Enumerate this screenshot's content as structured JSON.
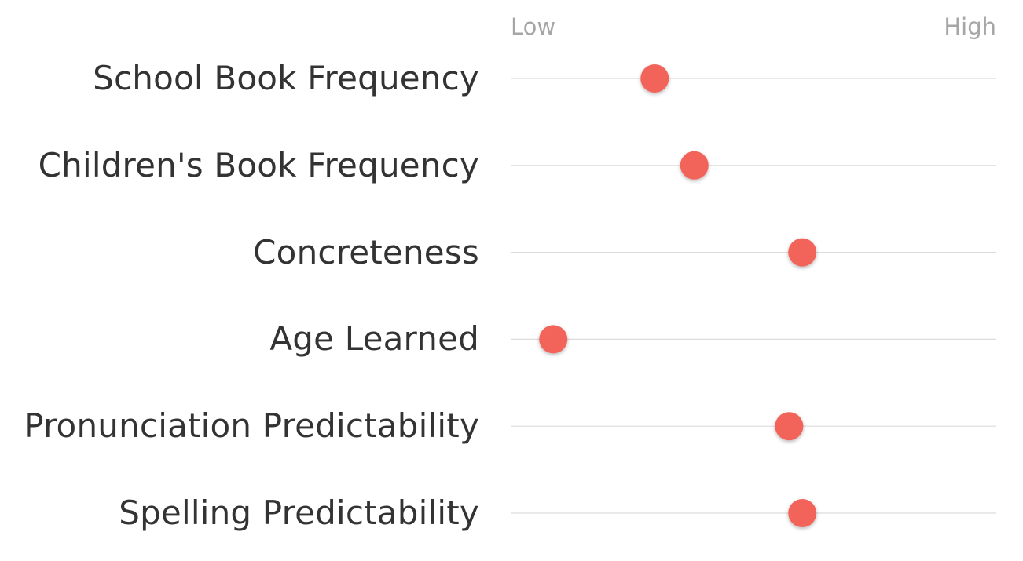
{
  "chart_data": {
    "type": "scatter",
    "orientation": "dot-plot",
    "scale": {
      "low_label": "Low",
      "high_label": "High",
      "min": 0,
      "max": 1
    },
    "grid": true,
    "legend": "none",
    "categories": [
      "School Book Frequency",
      "Children's Book Frequency",
      "Concreteness",
      "Age Learned",
      "Pronunciation Predictability",
      "Spelling Predictability"
    ],
    "values": [
      0.275,
      0.365,
      0.61,
      0.045,
      0.58,
      0.61
    ],
    "colors": {
      "dot": "#f2645a",
      "gridline": "#dcdcdc",
      "scale_text": "#a6a6a6",
      "label_text": "#333333"
    }
  }
}
